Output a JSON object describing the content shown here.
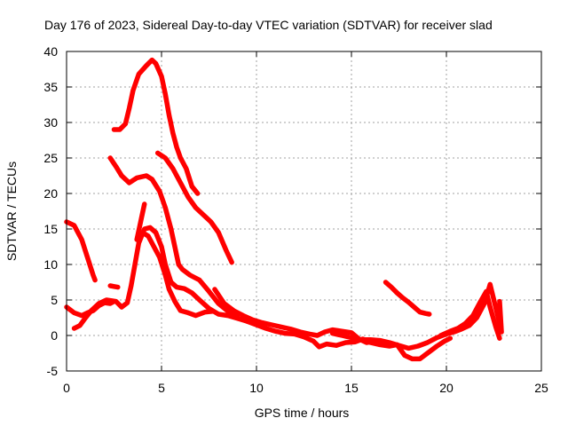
{
  "chart_data": {
    "type": "line",
    "title": "Day 176 of 2023, Sidereal Day-to-day VTEC variation (SDTVAR) for receiver slad",
    "xlabel": "GPS time / hours",
    "ylabel": "SDTVAR / TECUs",
    "xlim": [
      0,
      25
    ],
    "ylim": [
      -5,
      40
    ],
    "x_ticks": [
      "0",
      "5",
      "10",
      "15",
      "20",
      "25"
    ],
    "y_ticks": [
      "-5",
      "0",
      "5",
      "10",
      "15",
      "20",
      "25",
      "30",
      "35",
      "40"
    ],
    "grid": true,
    "color": "#ff0000",
    "series": [
      {
        "name": "arc-1",
        "points": [
          [
            0,
            16
          ],
          [
            0.4,
            15.5
          ],
          [
            0.8,
            13.5
          ],
          [
            1.1,
            11
          ],
          [
            1.4,
            8.5
          ],
          [
            1.5,
            7.8
          ]
        ]
      },
      {
        "name": "arc-2",
        "points": [
          [
            0,
            4
          ],
          [
            0.4,
            3.2
          ],
          [
            0.8,
            2.8
          ],
          [
            1.1,
            3.2
          ],
          [
            1.4,
            3.5
          ],
          [
            1.7,
            4.2
          ],
          [
            2,
            4.6
          ],
          [
            2.3,
            4.5
          ],
          [
            2.5,
            4.8
          ]
        ]
      },
      {
        "name": "arc-3",
        "points": [
          [
            0.4,
            1
          ],
          [
            0.7,
            1.4
          ],
          [
            1,
            2.5
          ],
          [
            1.3,
            3.5
          ],
          [
            1.7,
            4.5
          ],
          [
            2.1,
            5
          ],
          [
            2.6,
            4.8
          ],
          [
            2.9,
            4
          ],
          [
            3.2,
            4.6
          ],
          [
            3.4,
            7
          ],
          [
            3.6,
            10
          ],
          [
            3.8,
            13
          ],
          [
            4.1,
            15
          ],
          [
            4.4,
            15.2
          ],
          [
            4.7,
            14.5
          ],
          [
            5,
            12.5
          ],
          [
            5.2,
            10
          ],
          [
            5.5,
            7.5
          ],
          [
            5.8,
            6.8
          ],
          [
            6.2,
            6.6
          ],
          [
            6.6,
            6
          ],
          [
            7,
            5
          ],
          [
            7.5,
            3.8
          ],
          [
            8,
            3
          ],
          [
            8.5,
            2.8
          ],
          [
            9,
            2.4
          ],
          [
            9.5,
            2
          ]
        ]
      },
      {
        "name": "arc-4",
        "points": [
          [
            2.3,
            7
          ],
          [
            2.7,
            6.8
          ]
        ]
      },
      {
        "name": "arc-5",
        "points": [
          [
            2.5,
            29
          ],
          [
            2.8,
            29
          ],
          [
            3.1,
            29.8
          ],
          [
            3.3,
            32
          ],
          [
            3.5,
            34.5
          ],
          [
            3.8,
            36.8
          ],
          [
            4.2,
            38
          ],
          [
            4.5,
            38.8
          ],
          [
            4.7,
            38.3
          ],
          [
            5,
            36.5
          ],
          [
            5.2,
            34
          ],
          [
            5.4,
            31
          ],
          [
            5.6,
            28.5
          ],
          [
            5.8,
            26.5
          ],
          [
            6,
            25
          ],
          [
            6.3,
            23.5
          ],
          [
            6.6,
            21
          ],
          [
            6.9,
            20
          ]
        ]
      },
      {
        "name": "arc-6",
        "points": [
          [
            2.3,
            25
          ],
          [
            2.6,
            23.8
          ],
          [
            2.9,
            22.5
          ],
          [
            3.3,
            21.5
          ],
          [
            3.7,
            22.2
          ],
          [
            4.2,
            22.5
          ],
          [
            4.5,
            22
          ],
          [
            4.9,
            20.3
          ],
          [
            5.2,
            18
          ],
          [
            5.5,
            15
          ],
          [
            5.7,
            12.5
          ],
          [
            5.9,
            10
          ],
          [
            6.1,
            9.3
          ],
          [
            6.5,
            8.5
          ],
          [
            7,
            7.8
          ],
          [
            7.5,
            6.2
          ],
          [
            8,
            4.5
          ],
          [
            8.5,
            3.4
          ],
          [
            9,
            2.8
          ]
        ]
      },
      {
        "name": "arc-7",
        "points": [
          [
            4.1,
            18.5
          ],
          [
            3.9,
            16
          ],
          [
            3.7,
            13.5
          ],
          [
            4,
            14.5
          ],
          [
            4.3,
            14
          ],
          [
            4.6,
            12.5
          ],
          [
            4.9,
            11
          ],
          [
            5.2,
            8.5
          ],
          [
            5.4,
            6.5
          ],
          [
            5.7,
            4.8
          ],
          [
            6,
            3.5
          ],
          [
            6.4,
            3.2
          ],
          [
            6.8,
            2.8
          ],
          [
            7.3,
            3.3
          ],
          [
            7.7,
            3.4
          ]
        ]
      },
      {
        "name": "arc-8",
        "points": [
          [
            4.8,
            25.7
          ],
          [
            5.2,
            25
          ],
          [
            5.6,
            23.5
          ],
          [
            6,
            21.5
          ],
          [
            6.4,
            19.5
          ],
          [
            6.8,
            18
          ],
          [
            7.2,
            17
          ],
          [
            7.6,
            16
          ],
          [
            8,
            14.5
          ],
          [
            8.4,
            12
          ],
          [
            8.7,
            10.3
          ]
        ]
      },
      {
        "name": "arc-9",
        "points": [
          [
            7.8,
            6.5
          ],
          [
            8.3,
            4.5
          ],
          [
            8.8,
            3.5
          ],
          [
            9.3,
            2.8
          ],
          [
            9.8,
            2.2
          ],
          [
            10.3,
            1.8
          ],
          [
            10.8,
            1.5
          ],
          [
            11.3,
            1.2
          ],
          [
            11.8,
            0.9
          ],
          [
            12.3,
            0.5
          ],
          [
            12.8,
            0.2
          ],
          [
            13.2,
            0
          ],
          [
            13.6,
            0.5
          ],
          [
            14,
            0.8
          ],
          [
            14.5,
            0.6
          ],
          [
            15,
            0.4
          ],
          [
            15.4,
            -0.5
          ],
          [
            15.8,
            -1
          ],
          [
            16.2,
            -0.8
          ]
        ]
      },
      {
        "name": "arc-10",
        "points": [
          [
            9.5,
            2
          ],
          [
            10,
            1.5
          ],
          [
            10.5,
            1
          ],
          [
            11,
            0.6
          ],
          [
            11.5,
            0.3
          ],
          [
            12,
            0.2
          ],
          [
            12.5,
            -0.2
          ],
          [
            13,
            -0.8
          ],
          [
            13.3,
            -1.6
          ],
          [
            13.7,
            -1.2
          ],
          [
            14.2,
            -1.4
          ],
          [
            14.7,
            -1
          ],
          [
            15.2,
            -0.9
          ],
          [
            15.6,
            -0.5
          ],
          [
            16,
            -1
          ],
          [
            16.5,
            -1.3
          ],
          [
            17,
            -1.5
          ],
          [
            17.4,
            -1.3
          ],
          [
            17.8,
            -2.8
          ],
          [
            18.2,
            -3.3
          ],
          [
            18.6,
            -3.3
          ],
          [
            19,
            -2.5
          ],
          [
            19.5,
            -1.5
          ],
          [
            19.9,
            -0.8
          ],
          [
            20.2,
            -0.4
          ]
        ]
      },
      {
        "name": "arc-11",
        "points": [
          [
            14,
            0.3
          ],
          [
            14.5,
            0
          ],
          [
            15,
            -0.3
          ],
          [
            15.5,
            -0.6
          ],
          [
            16,
            -0.6
          ],
          [
            16.5,
            -0.7
          ],
          [
            17,
            -1
          ],
          [
            17.5,
            -1.4
          ],
          [
            18,
            -1.8
          ],
          [
            18.5,
            -1.5
          ],
          [
            19,
            -1
          ],
          [
            19.5,
            -0.3
          ],
          [
            20,
            0.2
          ],
          [
            20.4,
            0.5
          ],
          [
            20.8,
            0.9
          ],
          [
            21.2,
            1.4
          ],
          [
            21.6,
            2.5
          ],
          [
            22,
            4.5
          ],
          [
            22.3,
            7.2
          ],
          [
            22.5,
            5
          ],
          [
            22.7,
            2.8
          ],
          [
            22.9,
            0.5
          ],
          [
            22.8,
            4.8
          ]
        ]
      },
      {
        "name": "arc-12",
        "points": [
          [
            19.7,
            0
          ],
          [
            20.2,
            0.6
          ],
          [
            20.6,
            1
          ],
          [
            21,
            1.7
          ],
          [
            21.4,
            2.8
          ],
          [
            21.8,
            4.8
          ],
          [
            22.1,
            6.2
          ],
          [
            22.3,
            4
          ],
          [
            22.6,
            1.2
          ],
          [
            22.8,
            -0.4
          ]
        ]
      },
      {
        "name": "arc-13",
        "points": [
          [
            16.8,
            7.5
          ],
          [
            17.1,
            6.8
          ],
          [
            17.4,
            6
          ],
          [
            17.7,
            5.3
          ],
          [
            18,
            4.7
          ],
          [
            18.3,
            4
          ],
          [
            18.6,
            3.3
          ],
          [
            18.9,
            3.1
          ],
          [
            19.1,
            3
          ]
        ]
      }
    ]
  }
}
